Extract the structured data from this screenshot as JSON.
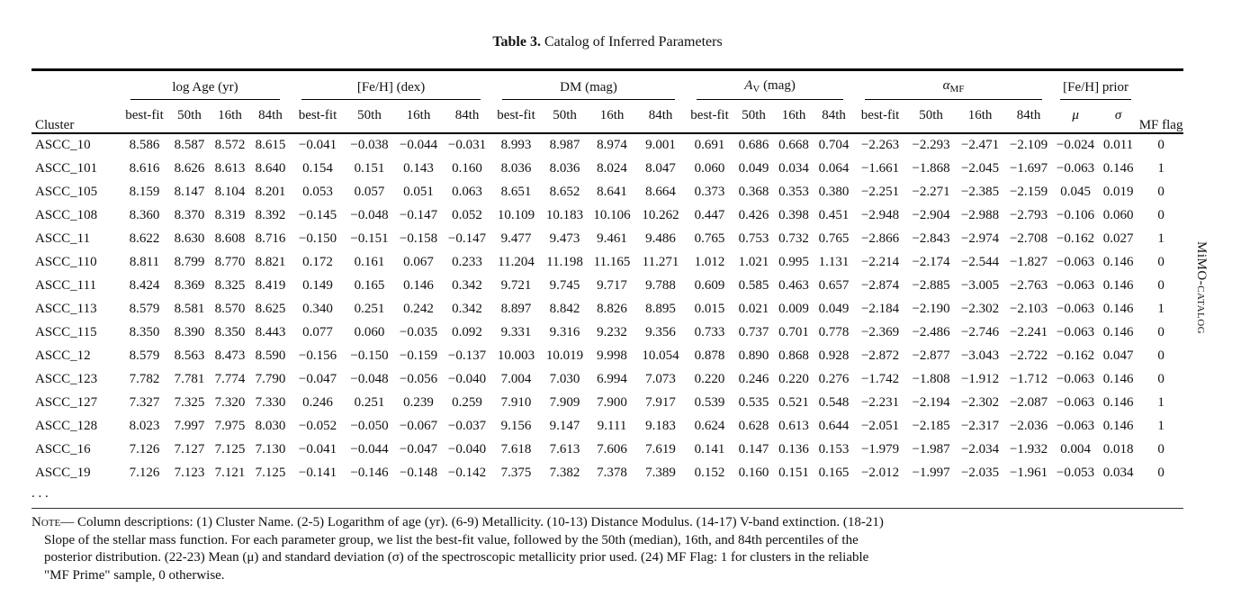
{
  "page": {
    "title_bold": "Table 3.",
    "title_rest": " Catalog of Inferred Parameters",
    "side_label_prefix": "MiMO-",
    "side_label_smallcaps": "catalog"
  },
  "table": {
    "groups": [
      {
        "id": "cluster",
        "label": "Cluster",
        "subs": [],
        "underline": false
      },
      {
        "id": "log-age",
        "label": "log Age (yr)",
        "subs": [
          "best-fit",
          "50th",
          "16th",
          "84th"
        ],
        "underline": true
      },
      {
        "id": "feh",
        "label": "[Fe/H] (dex)",
        "subs": [
          "best-fit",
          "50th",
          "16th",
          "84th"
        ],
        "underline": true
      },
      {
        "id": "dm",
        "label": "DM (mag)",
        "subs": [
          "best-fit",
          "50th",
          "16th",
          "84th"
        ],
        "underline": true
      },
      {
        "id": "av",
        "math": {
          "base": "A",
          "sub": "V",
          "rest": " (mag)"
        },
        "subs": [
          "best-fit",
          "50th",
          "16th",
          "84th"
        ],
        "underline": true
      },
      {
        "id": "alpha-mf",
        "math": {
          "base": "α",
          "sub": "MF",
          "rest": ""
        },
        "subs": [
          "best-fit",
          "50th",
          "16th",
          "84th"
        ],
        "underline": true
      },
      {
        "id": "feh-prior",
        "label": "[Fe/H] prior",
        "subs": [
          "μ",
          "σ"
        ],
        "underline": true,
        "italic_subs": true
      },
      {
        "id": "mf-flag",
        "label": "MF flag",
        "subs": [],
        "underline": false
      }
    ],
    "rows": [
      [
        "ASCC_10",
        "8.586",
        "8.587",
        "8.572",
        "8.615",
        "−0.041",
        "−0.038",
        "−0.044",
        "−0.031",
        "8.993",
        "8.987",
        "8.974",
        "9.001",
        "0.691",
        "0.686",
        "0.668",
        "0.704",
        "−2.263",
        "−2.293",
        "−2.471",
        "−2.109",
        "−0.024",
        "0.011",
        "0"
      ],
      [
        "ASCC_101",
        "8.616",
        "8.626",
        "8.613",
        "8.640",
        "0.154",
        "0.151",
        "0.143",
        "0.160",
        "8.036",
        "8.036",
        "8.024",
        "8.047",
        "0.060",
        "0.049",
        "0.034",
        "0.064",
        "−1.661",
        "−1.868",
        "−2.045",
        "−1.697",
        "−0.063",
        "0.146",
        "1"
      ],
      [
        "ASCC_105",
        "8.159",
        "8.147",
        "8.104",
        "8.201",
        "0.053",
        "0.057",
        "0.051",
        "0.063",
        "8.651",
        "8.652",
        "8.641",
        "8.664",
        "0.373",
        "0.368",
        "0.353",
        "0.380",
        "−2.251",
        "−2.271",
        "−2.385",
        "−2.159",
        "0.045",
        "0.019",
        "0"
      ],
      [
        "ASCC_108",
        "8.360",
        "8.370",
        "8.319",
        "8.392",
        "−0.145",
        "−0.048",
        "−0.147",
        "0.052",
        "10.109",
        "10.183",
        "10.106",
        "10.262",
        "0.447",
        "0.426",
        "0.398",
        "0.451",
        "−2.948",
        "−2.904",
        "−2.988",
        "−2.793",
        "−0.106",
        "0.060",
        "0"
      ],
      [
        "ASCC_11",
        "8.622",
        "8.630",
        "8.608",
        "8.716",
        "−0.150",
        "−0.151",
        "−0.158",
        "−0.147",
        "9.477",
        "9.473",
        "9.461",
        "9.486",
        "0.765",
        "0.753",
        "0.732",
        "0.765",
        "−2.866",
        "−2.843",
        "−2.974",
        "−2.708",
        "−0.162",
        "0.027",
        "1"
      ],
      [
        "ASCC_110",
        "8.811",
        "8.799",
        "8.770",
        "8.821",
        "0.172",
        "0.161",
        "0.067",
        "0.233",
        "11.204",
        "11.198",
        "11.165",
        "11.271",
        "1.012",
        "1.021",
        "0.995",
        "1.131",
        "−2.214",
        "−2.174",
        "−2.544",
        "−1.827",
        "−0.063",
        "0.146",
        "0"
      ],
      [
        "ASCC_111",
        "8.424",
        "8.369",
        "8.325",
        "8.419",
        "0.149",
        "0.165",
        "0.146",
        "0.342",
        "9.721",
        "9.745",
        "9.717",
        "9.788",
        "0.609",
        "0.585",
        "0.463",
        "0.657",
        "−2.874",
        "−2.885",
        "−3.005",
        "−2.763",
        "−0.063",
        "0.146",
        "0"
      ],
      [
        "ASCC_113",
        "8.579",
        "8.581",
        "8.570",
        "8.625",
        "0.340",
        "0.251",
        "0.242",
        "0.342",
        "8.897",
        "8.842",
        "8.826",
        "8.895",
        "0.015",
        "0.021",
        "0.009",
        "0.049",
        "−2.184",
        "−2.190",
        "−2.302",
        "−2.103",
        "−0.063",
        "0.146",
        "1"
      ],
      [
        "ASCC_115",
        "8.350",
        "8.390",
        "8.350",
        "8.443",
        "0.077",
        "0.060",
        "−0.035",
        "0.092",
        "9.331",
        "9.316",
        "9.232",
        "9.356",
        "0.733",
        "0.737",
        "0.701",
        "0.778",
        "−2.369",
        "−2.486",
        "−2.746",
        "−2.241",
        "−0.063",
        "0.146",
        "0"
      ],
      [
        "ASCC_12",
        "8.579",
        "8.563",
        "8.473",
        "8.590",
        "−0.156",
        "−0.150",
        "−0.159",
        "−0.137",
        "10.003",
        "10.019",
        "9.998",
        "10.054",
        "0.878",
        "0.890",
        "0.868",
        "0.928",
        "−2.872",
        "−2.877",
        "−3.043",
        "−2.722",
        "−0.162",
        "0.047",
        "0"
      ],
      [
        "ASCC_123",
        "7.782",
        "7.781",
        "7.774",
        "7.790",
        "−0.047",
        "−0.048",
        "−0.056",
        "−0.040",
        "7.004",
        "7.030",
        "6.994",
        "7.073",
        "0.220",
        "0.246",
        "0.220",
        "0.276",
        "−1.742",
        "−1.808",
        "−1.912",
        "−1.712",
        "−0.063",
        "0.146",
        "0"
      ],
      [
        "ASCC_127",
        "7.327",
        "7.325",
        "7.320",
        "7.330",
        "0.246",
        "0.251",
        "0.239",
        "0.259",
        "7.910",
        "7.909",
        "7.900",
        "7.917",
        "0.539",
        "0.535",
        "0.521",
        "0.548",
        "−2.231",
        "−2.194",
        "−2.302",
        "−2.087",
        "−0.063",
        "0.146",
        "1"
      ],
      [
        "ASCC_128",
        "8.023",
        "7.997",
        "7.975",
        "8.030",
        "−0.052",
        "−0.050",
        "−0.067",
        "−0.037",
        "9.156",
        "9.147",
        "9.111",
        "9.183",
        "0.624",
        "0.628",
        "0.613",
        "0.644",
        "−2.051",
        "−2.185",
        "−2.317",
        "−2.036",
        "−0.063",
        "0.146",
        "1"
      ],
      [
        "ASCC_16",
        "7.126",
        "7.127",
        "7.125",
        "7.130",
        "−0.041",
        "−0.044",
        "−0.047",
        "−0.040",
        "7.618",
        "7.613",
        "7.606",
        "7.619",
        "0.141",
        "0.147",
        "0.136",
        "0.153",
        "−1.979",
        "−1.987",
        "−2.034",
        "−1.932",
        "0.004",
        "0.018",
        "0"
      ],
      [
        "ASCC_19",
        "7.126",
        "7.123",
        "7.121",
        "7.125",
        "−0.141",
        "−0.146",
        "−0.148",
        "−0.142",
        "7.375",
        "7.382",
        "7.378",
        "7.389",
        "0.152",
        "0.160",
        "0.151",
        "0.165",
        "−2.012",
        "−1.997",
        "−2.035",
        "−1.961",
        "−0.053",
        "0.034",
        "0"
      ]
    ],
    "ellipsis": ". . ."
  },
  "note": {
    "label": "Note",
    "text": "— Column descriptions:  (1) Cluster Name.  (2-5) Logarithm of age (yr).  (6-9) Metallicity.  (10-13) Distance Modulus.  (14-17) V-band extinction.  (18-21) Slope of the stellar mass function.  For each parameter group, we list the best-fit value, followed by the 50th (median), 16th, and 84th percentiles of the posterior distribution.  (22-23) Mean (μ) and standard deviation (σ) of the spectroscopic metallicity prior used.  (24) MF Flag: 1 for clusters in the reliable \"MF Prime\" sample, 0 otherwise."
  }
}
